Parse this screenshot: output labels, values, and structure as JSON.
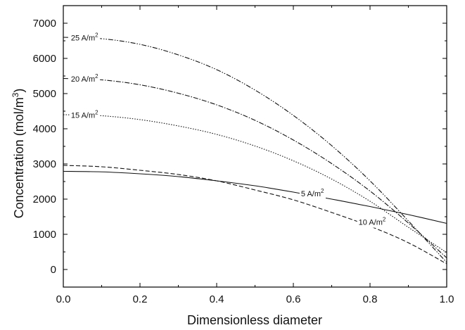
{
  "chart_data": {
    "type": "line",
    "title": "",
    "xlabel": "Dimensionless diameter",
    "ylabel_text": "Concentration (mol/m",
    "ylabel_sup": "3",
    "ylabel_close": ")",
    "xlim": [
      0.0,
      1.0
    ],
    "ylim": [
      -500,
      7500
    ],
    "x_ticks": [
      0.0,
      0.2,
      0.4,
      0.6,
      0.8,
      1.0
    ],
    "x_tick_labels": [
      "0.0",
      "0.2",
      "0.4",
      "0.6",
      "0.8",
      "1.0"
    ],
    "x_minor_ticks": [
      0.1,
      0.3,
      0.5,
      0.7,
      0.9
    ],
    "y_ticks": [
      0,
      1000,
      2000,
      3000,
      4000,
      5000,
      6000,
      7000
    ],
    "y_tick_labels": [
      "0",
      "1000",
      "2000",
      "3000",
      "4000",
      "5000",
      "6000",
      "7000"
    ],
    "y_minor_ticks": [
      -500,
      500,
      1500,
      2500,
      3500,
      4500,
      5500,
      6500,
      7500
    ],
    "grid": false,
    "legend": "none",
    "series": [
      {
        "name": "5 A/m2",
        "label_text": "5 A/m",
        "label_sup": "2",
        "style": "solid",
        "x": [
          0.0,
          0.1,
          0.2,
          0.3,
          0.4,
          0.5,
          0.6,
          0.7,
          0.8,
          0.9,
          1.0
        ],
        "y": [
          2790,
          2775,
          2720,
          2640,
          2520,
          2380,
          2200,
          2000,
          1790,
          1560,
          1310
        ]
      },
      {
        "name": "10 A/m2",
        "label_text": "10 A/m",
        "label_sup": "2",
        "style": "dashed",
        "x": [
          0.0,
          0.1,
          0.2,
          0.3,
          0.4,
          0.5,
          0.6,
          0.7,
          0.8,
          0.9,
          1.0
        ],
        "y": [
          2960,
          2920,
          2820,
          2700,
          2520,
          2260,
          1980,
          1620,
          1230,
          760,
          160
        ]
      },
      {
        "name": "15 A/m2",
        "label_text": "15 A/m",
        "label_sup": "2",
        "style": "dotted",
        "x": [
          0.0,
          0.1,
          0.2,
          0.3,
          0.4,
          0.5,
          0.6,
          0.7,
          0.8,
          0.9,
          1.0
        ],
        "y": [
          4400,
          4370,
          4260,
          4080,
          3840,
          3510,
          3090,
          2570,
          1940,
          1200,
          480
        ]
      },
      {
        "name": "20 A/m2",
        "label_text": "20 A/m",
        "label_sup": "2",
        "style": "dashdot",
        "x": [
          0.0,
          0.1,
          0.2,
          0.3,
          0.4,
          0.5,
          0.6,
          0.7,
          0.8,
          0.9,
          1.0
        ],
        "y": [
          5430,
          5390,
          5250,
          5010,
          4680,
          4240,
          3680,
          3010,
          2230,
          1320,
          330
        ]
      },
      {
        "name": "25 A/m2",
        "label_text": "25 A/m",
        "label_sup": "2",
        "style": "dashdotdot",
        "x": [
          0.0,
          0.1,
          0.2,
          0.3,
          0.4,
          0.5,
          0.6,
          0.7,
          0.8,
          0.9,
          1.0
        ],
        "y": [
          6600,
          6560,
          6400,
          6100,
          5680,
          5100,
          4380,
          3520,
          2520,
          1380,
          200
        ]
      }
    ]
  }
}
